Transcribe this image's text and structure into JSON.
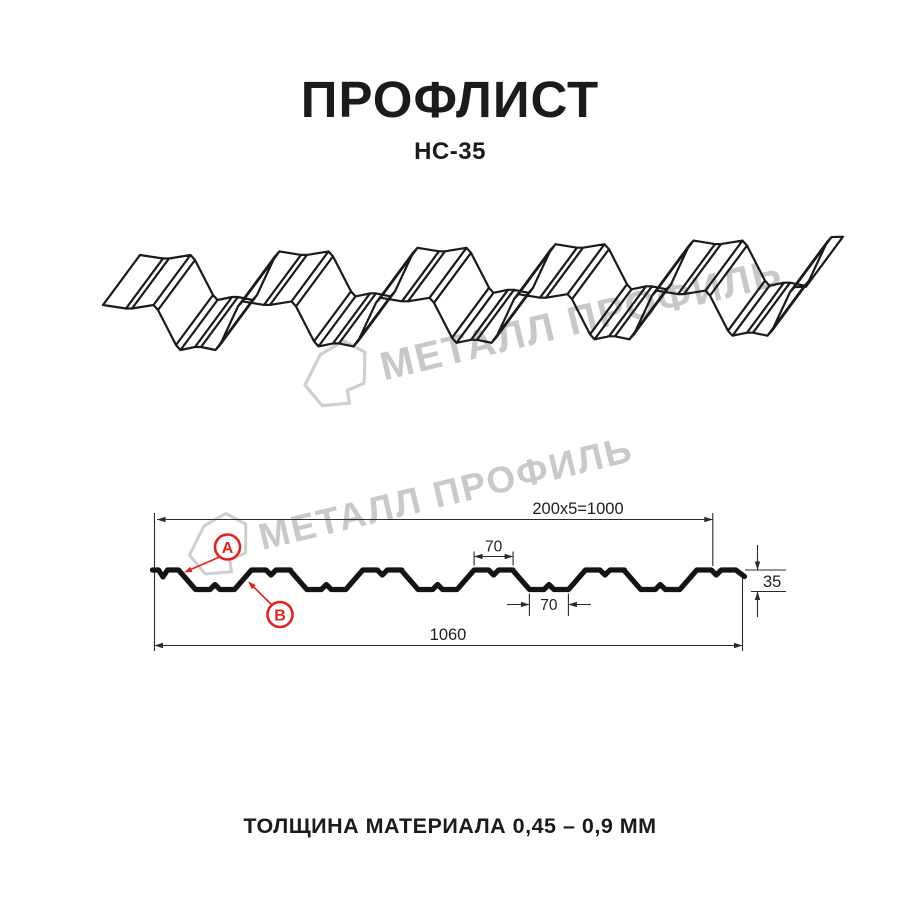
{
  "header": {
    "title": "ПРОФЛИСТ",
    "subtitle": "НС-35"
  },
  "footer": {
    "text": "ТОЛЩИНА МАТЕРИАЛА 0,45 – 0,9 ММ"
  },
  "watermark": {
    "brand": "МЕТАЛЛ ПРОФИЛЬ"
  },
  "diagram": {
    "dim_working_width": "200x5=1000",
    "dim_rib_top": "70",
    "dim_rib_bottom": "70",
    "dim_height": "35",
    "dim_total_width": "1060",
    "marker_a": "A",
    "marker_b": "B"
  },
  "colors": {
    "line": "#141414",
    "dim_line": "#2b2b2b",
    "accent_red": "#e42320",
    "watermark_gray": "#c8c8c8"
  }
}
